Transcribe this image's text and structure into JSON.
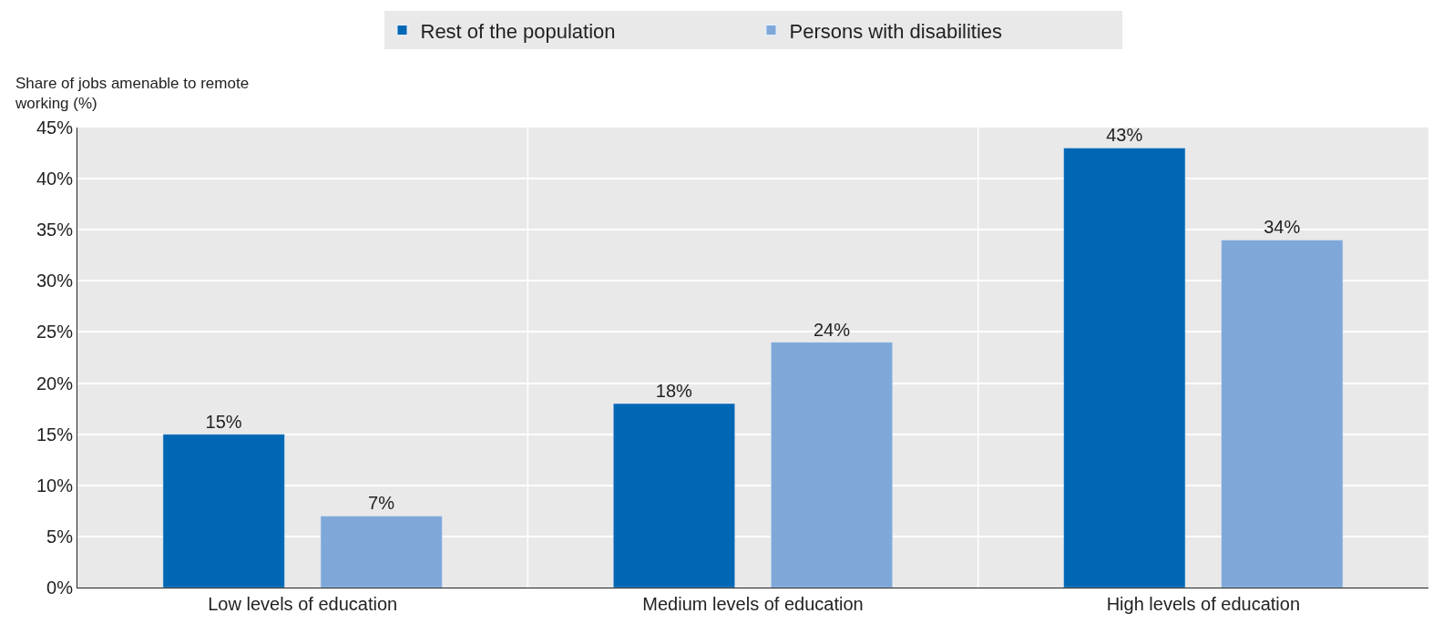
{
  "chart_data": {
    "type": "bar",
    "ylabel": "Share of jobs amenable to remote working (%)",
    "categories": [
      "Low levels of education",
      "Medium levels of education",
      "High levels of education"
    ],
    "series": [
      {
        "name": "Rest of the population",
        "color": "#0067b4",
        "values": [
          15,
          18,
          43
        ],
        "value_labels": [
          "15%",
          "18%",
          "43%"
        ]
      },
      {
        "name": "Persons with disabilities",
        "color": "#7fa8d9",
        "values": [
          7,
          24,
          34
        ],
        "value_labels": [
          "7%",
          "24%",
          "34%"
        ]
      }
    ],
    "ylim": [
      0,
      45
    ],
    "yticks": [
      {
        "value": 0,
        "label": "0%"
      },
      {
        "value": 5,
        "label": "5%"
      },
      {
        "value": 10,
        "label": "10%"
      },
      {
        "value": 15,
        "label": "15%"
      },
      {
        "value": 20,
        "label": "20%"
      },
      {
        "value": 25,
        "label": "25%"
      },
      {
        "value": 30,
        "label": "30%"
      },
      {
        "value": 35,
        "label": "35%"
      },
      {
        "value": 40,
        "label": "40%"
      },
      {
        "value": 45,
        "label": "45%"
      }
    ],
    "grid": true,
    "legend": "top"
  }
}
